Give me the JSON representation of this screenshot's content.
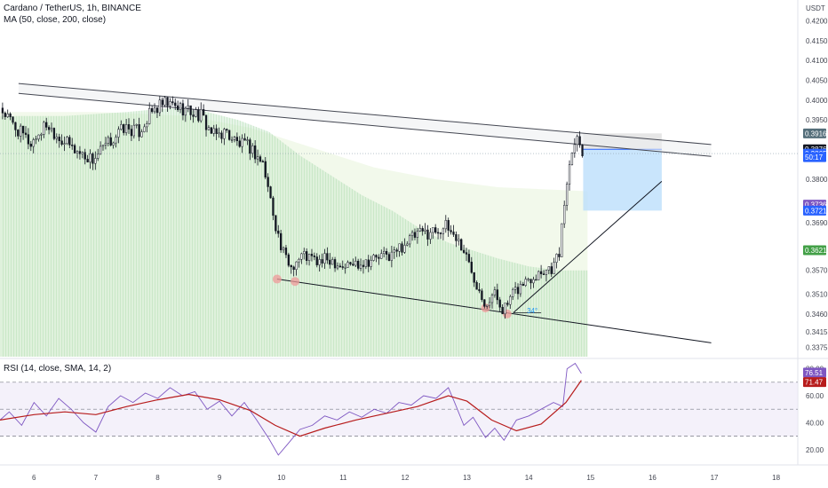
{
  "header": {
    "title": "Cardano / TetherUS, 1h, BINANCE",
    "ma_legend": "MA (50, close, 200, close)",
    "rsi_legend": "RSI (14, close, SMA, 14, 2)",
    "currency": "USDT"
  },
  "colors": {
    "up": "#26a69a",
    "down": "#ef5350",
    "candle": "#131722",
    "ma_fill": "#c8e6c9",
    "rsi_line": "#7e57c2",
    "rsi_ma": "#b71c1c",
    "rsi_band": "#ede7f6",
    "position_target": "#bbdefb",
    "position_stop": "#e0e0e0"
  },
  "chart_data": [
    {
      "type": "candlestick",
      "title": "Cardano / TetherUS, 1h, BINANCE",
      "x_unit": "day",
      "x_ticks": [
        "6",
        "7",
        "8",
        "9",
        "10",
        "11",
        "12",
        "13",
        "14",
        "15",
        "16",
        "17",
        "18"
      ],
      "x_tick_values": [
        6,
        7,
        8,
        9,
        10,
        11,
        12,
        13,
        14,
        15,
        16,
        17,
        18
      ],
      "xlim": [
        5.45,
        18.35
      ],
      "y_ticks": [
        "0.4200",
        "0.4150",
        "0.4100",
        "0.4050",
        "0.4000",
        "0.3950",
        "0.3800",
        "0.3690",
        "0.3570",
        "0.3510",
        "0.3460",
        "0.3415",
        "0.3375"
      ],
      "y_tick_values": [
        0.42,
        0.415,
        0.41,
        0.405,
        0.4,
        0.395,
        0.38,
        0.369,
        0.357,
        0.351,
        0.346,
        0.3415,
        0.3375
      ],
      "ylim": [
        0.3352,
        0.4235
      ],
      "close_path": [
        [
          5.45,
          0.398
        ],
        [
          5.7,
          0.393
        ],
        [
          5.95,
          0.389
        ],
        [
          6.2,
          0.394
        ],
        [
          6.45,
          0.39
        ],
        [
          6.7,
          0.387
        ],
        [
          6.95,
          0.385
        ],
        [
          7.2,
          0.389
        ],
        [
          7.45,
          0.393
        ],
        [
          7.7,
          0.392
        ],
        [
          7.9,
          0.397
        ],
        [
          8.1,
          0.399
        ],
        [
          8.4,
          0.398
        ],
        [
          8.7,
          0.396
        ],
        [
          8.9,
          0.391
        ],
        [
          9.1,
          0.392
        ],
        [
          9.3,
          0.389
        ],
        [
          9.5,
          0.388
        ],
        [
          9.7,
          0.384
        ],
        [
          9.85,
          0.373
        ],
        [
          10.0,
          0.362
        ],
        [
          10.15,
          0.358
        ],
        [
          10.35,
          0.361
        ],
        [
          10.6,
          0.359
        ],
        [
          10.8,
          0.36
        ],
        [
          11.0,
          0.358
        ],
        [
          11.25,
          0.359
        ],
        [
          11.5,
          0.36
        ],
        [
          11.8,
          0.361
        ],
        [
          12.0,
          0.364
        ],
        [
          12.2,
          0.366
        ],
        [
          12.45,
          0.367
        ],
        [
          12.65,
          0.368
        ],
        [
          12.8,
          0.366
        ],
        [
          12.95,
          0.362
        ],
        [
          13.1,
          0.356
        ],
        [
          13.3,
          0.349
        ],
        [
          13.45,
          0.351
        ],
        [
          13.6,
          0.347
        ],
        [
          13.8,
          0.352
        ],
        [
          14.0,
          0.355
        ],
        [
          14.2,
          0.357
        ],
        [
          14.4,
          0.358
        ],
        [
          14.5,
          0.362
        ],
        [
          14.6,
          0.378
        ],
        [
          14.72,
          0.39
        ],
        [
          14.78,
          0.3916
        ],
        [
          14.85,
          0.3865
        ]
      ],
      "ma50_fill": [
        [
          5.45,
          0.396
        ],
        [
          6.5,
          0.396
        ],
        [
          7.5,
          0.397
        ],
        [
          8.2,
          0.398
        ],
        [
          8.8,
          0.397
        ],
        [
          9.3,
          0.395
        ],
        [
          9.8,
          0.392
        ],
        [
          10.3,
          0.386
        ],
        [
          10.8,
          0.381
        ],
        [
          11.3,
          0.376
        ],
        [
          11.8,
          0.372
        ],
        [
          12.3,
          0.367
        ],
        [
          12.7,
          0.364
        ],
        [
          13.1,
          0.362
        ],
        [
          13.5,
          0.36
        ],
        [
          14.0,
          0.358
        ],
        [
          14.5,
          0.357
        ],
        [
          14.95,
          0.357
        ]
      ],
      "ma200_fill": [
        [
          5.45,
          0.397
        ],
        [
          7.0,
          0.397
        ],
        [
          8.5,
          0.396
        ],
        [
          9.5,
          0.393
        ],
        [
          10.5,
          0.388
        ],
        [
          11.5,
          0.383
        ],
        [
          12.5,
          0.38
        ],
        [
          13.5,
          0.378
        ],
        [
          14.95,
          0.377
        ]
      ],
      "annotations": {
        "upper_channel": [
          [
            5.75,
            0.4042
          ],
          [
            16.95,
            0.3888
          ]
        ],
        "upper_channel_2": [
          [
            5.75,
            0.4017
          ],
          [
            16.95,
            0.3858
          ]
        ],
        "lower_trendline": [
          [
            9.93,
            0.3548
          ],
          [
            16.95,
            0.3387
          ]
        ],
        "rising_trendline": [
          [
            13.75,
            0.3463
          ],
          [
            16.15,
            0.3795
          ]
        ],
        "swing_low_markers": [
          [
            9.93,
            0.3548
          ],
          [
            10.22,
            0.3542
          ],
          [
            13.3,
            0.3475
          ],
          [
            13.65,
            0.346
          ]
        ],
        "angle_label": "34°",
        "angle_label_at": [
          13.97,
          0.3462
        ],
        "position_entry": 0.3876,
        "position_stop": 0.3916,
        "position_target": 0.3721,
        "position_x": [
          14.88,
          16.15
        ]
      },
      "price_labels": [
        "0.3916",
        "0.3876",
        "0.3865",
        "50:17",
        "0.3736",
        "0.3721",
        "0.3621"
      ],
      "price_label_values": [
        0.3916,
        0.3876,
        0.3865,
        0.3856,
        0.3736,
        0.3721,
        0.3621
      ]
    },
    {
      "type": "line",
      "title": "RSI (14, close, SMA, 14, 2)",
      "y_ticks": [
        "80.00",
        "60.00",
        "40.00",
        "20.00"
      ],
      "y_tick_values": [
        80,
        60,
        40,
        20
      ],
      "ylim": [
        10,
        85
      ],
      "bands": [
        70,
        50,
        30
      ],
      "series": [
        {
          "values": [
            [
              5.45,
              42
            ],
            [
              5.6,
              48
            ],
            [
              5.8,
              38
            ],
            [
              6.0,
              55
            ],
            [
              6.2,
              45
            ],
            [
              6.4,
              58
            ],
            [
              6.6,
              50
            ],
            [
              6.8,
              40
            ],
            [
              7.0,
              33
            ],
            [
              7.2,
              52
            ],
            [
              7.4,
              60
            ],
            [
              7.6,
              55
            ],
            [
              7.8,
              62
            ],
            [
              8.0,
              58
            ],
            [
              8.2,
              66
            ],
            [
              8.4,
              60
            ],
            [
              8.6,
              63
            ],
            [
              8.8,
              50
            ],
            [
              9.0,
              56
            ],
            [
              9.2,
              45
            ],
            [
              9.4,
              55
            ],
            [
              9.6,
              42
            ],
            [
              9.8,
              28
            ],
            [
              9.95,
              16
            ],
            [
              10.1,
              24
            ],
            [
              10.3,
              35
            ],
            [
              10.5,
              38
            ],
            [
              10.7,
              45
            ],
            [
              10.9,
              42
            ],
            [
              11.1,
              48
            ],
            [
              11.3,
              44
            ],
            [
              11.5,
              50
            ],
            [
              11.7,
              47
            ],
            [
              11.9,
              55
            ],
            [
              12.1,
              53
            ],
            [
              12.3,
              60
            ],
            [
              12.5,
              58
            ],
            [
              12.7,
              66
            ],
            [
              12.8,
              55
            ],
            [
              12.95,
              38
            ],
            [
              13.1,
              44
            ],
            [
              13.3,
              29
            ],
            [
              13.45,
              36
            ],
            [
              13.6,
              27
            ],
            [
              13.8,
              42
            ],
            [
              14.0,
              45
            ],
            [
              14.2,
              50
            ],
            [
              14.4,
              55
            ],
            [
              14.55,
              52
            ],
            [
              14.62,
              80
            ],
            [
              14.75,
              84
            ],
            [
              14.85,
              76.51
            ]
          ]
        },
        {
          "values": [
            [
              5.45,
              42
            ],
            [
              6.0,
              46
            ],
            [
              6.5,
              48
            ],
            [
              7.0,
              46
            ],
            [
              7.5,
              52
            ],
            [
              8.0,
              57
            ],
            [
              8.5,
              61
            ],
            [
              9.0,
              57
            ],
            [
              9.5,
              49
            ],
            [
              9.9,
              38
            ],
            [
              10.3,
              30
            ],
            [
              10.7,
              36
            ],
            [
              11.2,
              42
            ],
            [
              11.7,
              47
            ],
            [
              12.2,
              52
            ],
            [
              12.7,
              60
            ],
            [
              13.0,
              56
            ],
            [
              13.4,
              42
            ],
            [
              13.8,
              34
            ],
            [
              14.2,
              39
            ],
            [
              14.6,
              55
            ],
            [
              14.85,
              71.47
            ]
          ]
        }
      ],
      "value_labels": [
        "76.51",
        "71.47"
      ],
      "value_label_values": [
        76.51,
        71.47
      ]
    }
  ]
}
